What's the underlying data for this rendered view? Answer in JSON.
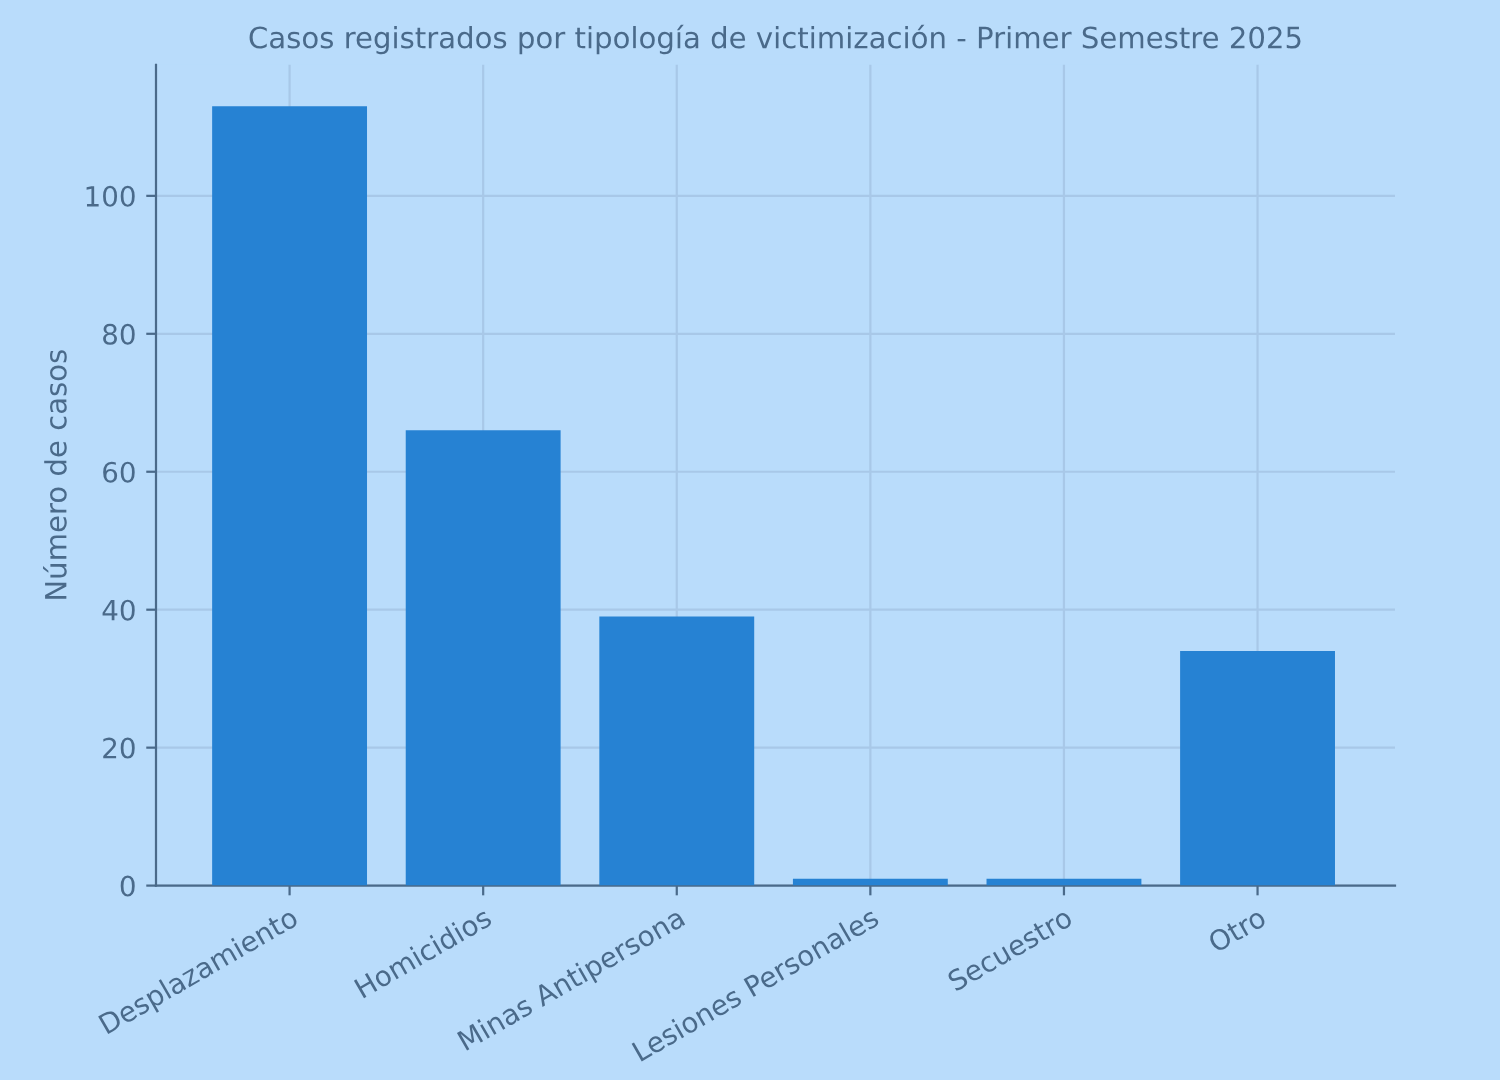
{
  "chart_data": {
    "type": "bar",
    "title": "Casos registrados por tipología de victimización - Primer Semestre 2025",
    "ylabel": "Número de casos",
    "categories": [
      "Desplazamiento",
      "Homicidios",
      "Minas Antipersona",
      "Lesiones Personales",
      "Secuestro",
      "Otro"
    ],
    "values": [
      113,
      66,
      39,
      1,
      1,
      34
    ],
    "color": "#2682d3",
    "ylim": [
      0,
      119
    ],
    "yticks": [
      0,
      20,
      40,
      60,
      80,
      100
    ],
    "grid": true,
    "legend": false
  }
}
